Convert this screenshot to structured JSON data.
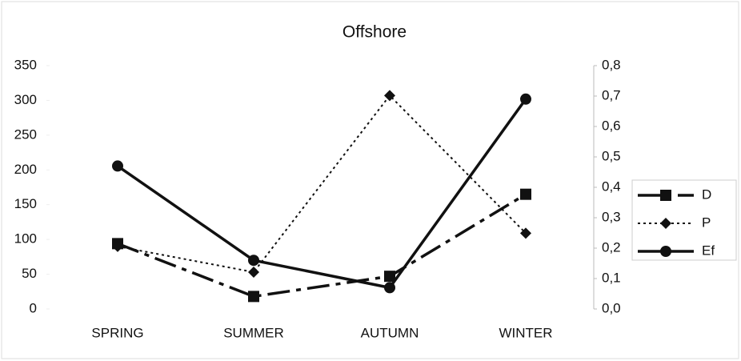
{
  "chart_data": {
    "type": "line",
    "title": "Offshore",
    "categories": [
      "SPRING",
      "SUMMER",
      "AUTUMN",
      "WINTER"
    ],
    "series": [
      {
        "name": "D",
        "color": "#111111",
        "marker": "square",
        "dash": "dashed",
        "values": [
          94,
          18,
          47,
          165
        ]
      },
      {
        "name": "P",
        "color": "#111111",
        "marker": "diamond",
        "dash": "dotted",
        "values": [
          90,
          53,
          307,
          109
        ]
      },
      {
        "name": "Ef",
        "color": "#111111",
        "marker": "circle",
        "dash": "solid",
        "axis": "y2",
        "values": [
          0.47,
          0.16,
          0.07,
          0.69
        ]
      }
    ],
    "ylim": [
      0,
      350
    ],
    "yticks": [
      0,
      50,
      100,
      150,
      200,
      250,
      300,
      350
    ],
    "y2lim": [
      0,
      0.8
    ],
    "y2ticks": [
      {
        "value": 0,
        "label": "0,0"
      },
      {
        "value": 0.1,
        "label": "0,1"
      },
      {
        "value": 0.2,
        "label": "0,2"
      },
      {
        "value": 0.3,
        "label": "0,3"
      },
      {
        "value": 0.4,
        "label": "0,4"
      },
      {
        "value": 0.5,
        "label": "0,5"
      },
      {
        "value": 0.6,
        "label": "0,6"
      },
      {
        "value": 0.7,
        "label": "0,7"
      },
      {
        "value": 0.8,
        "label": "0,8"
      }
    ],
    "legend": "right",
    "grid": false
  }
}
